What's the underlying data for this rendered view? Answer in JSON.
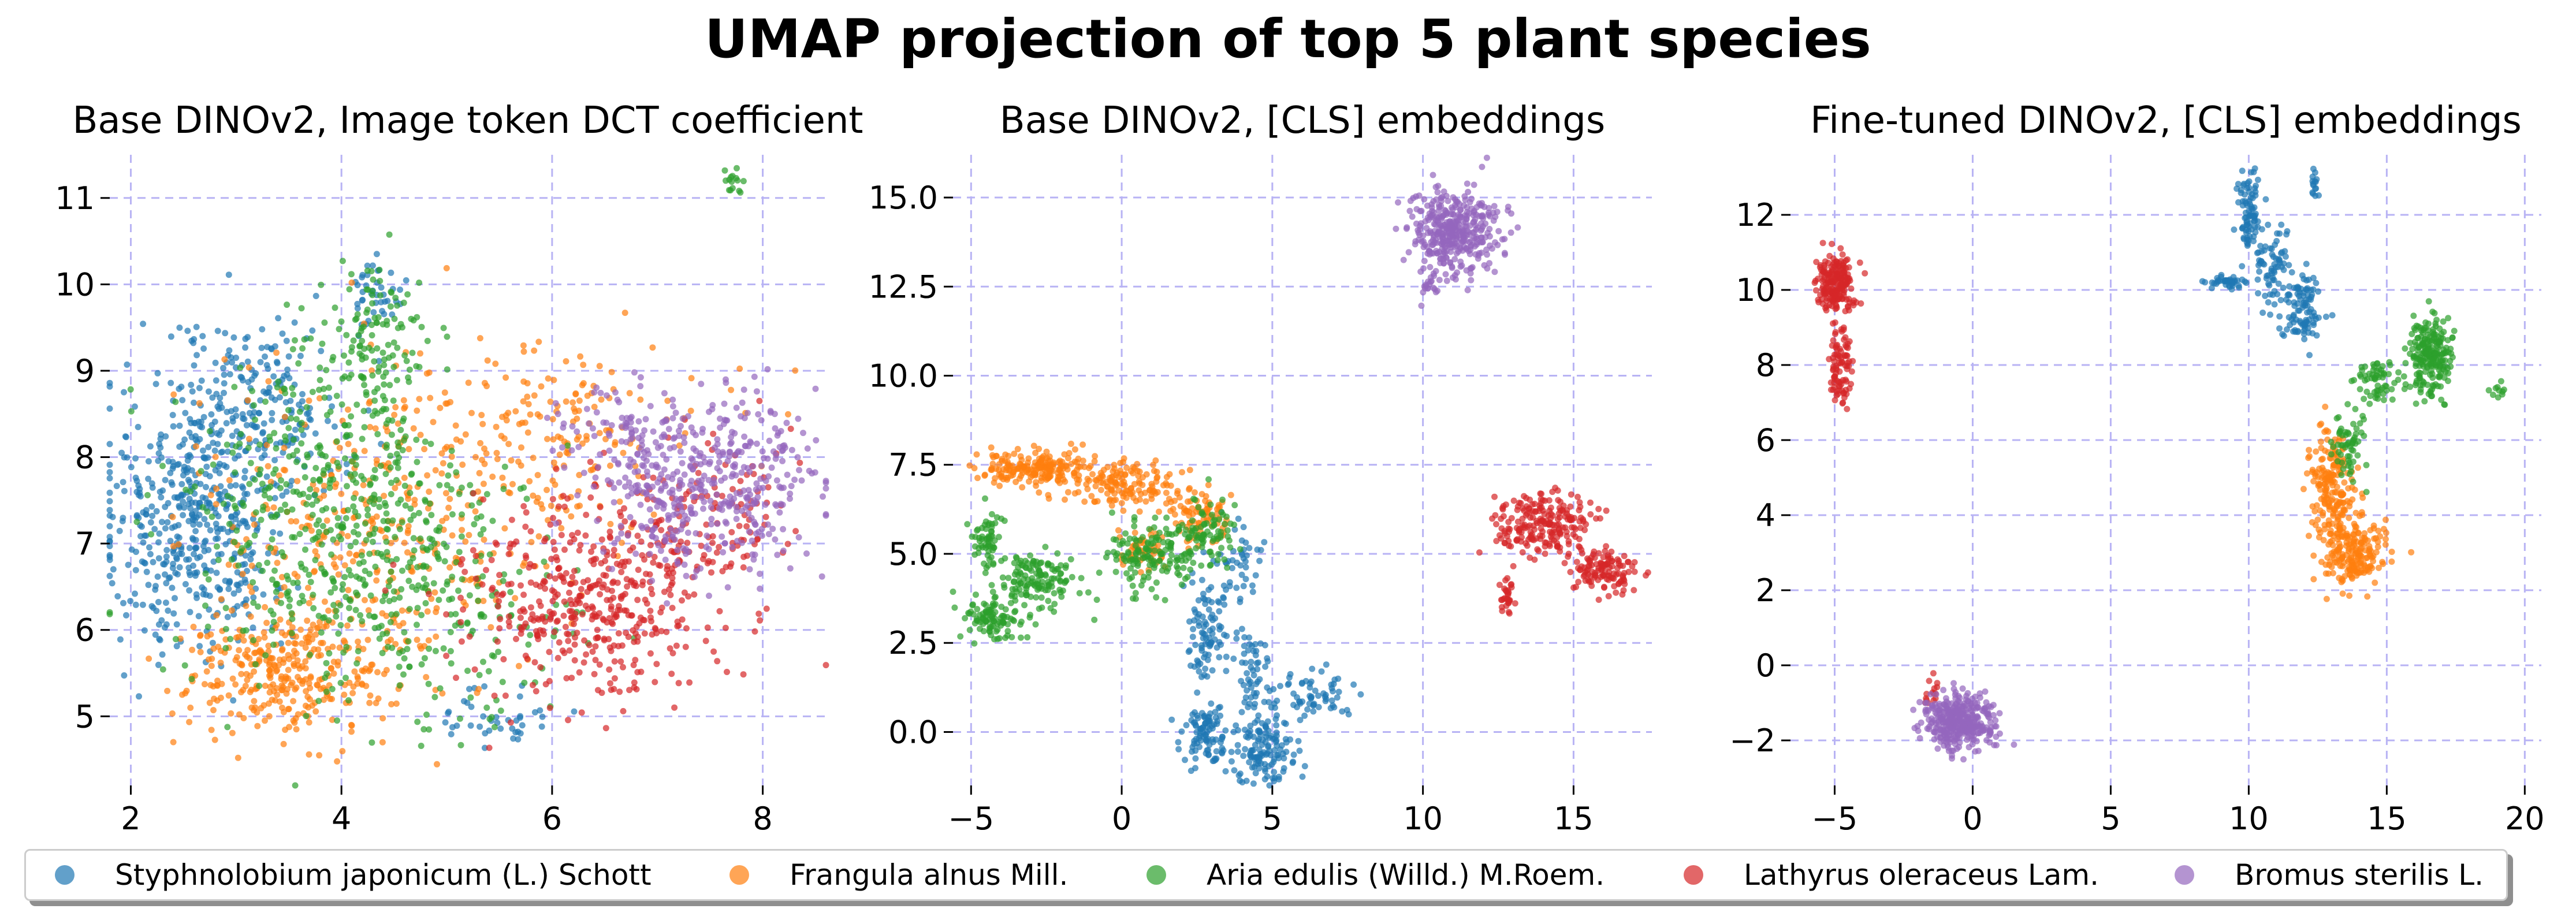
{
  "figure_title": "UMAP projection of top 5 plant species",
  "colors": [
    "#1f77b4",
    "#ff7f0e",
    "#2ca02c",
    "#d62728",
    "#9467bd"
  ],
  "legend": [
    "Styphnolobium japonicum (L.) Schott",
    "Frangula alnus Mill.",
    "Aria edulis (Willd.) M.Roem.",
    "Lathyrus oleraceus Lam.",
    "Bromus sterilis L."
  ],
  "chart_data": [
    {
      "type": "scatter",
      "title": "Base DINOv2, Image token DCT coefficient",
      "xlim": [
        1.8,
        8.6
      ],
      "ylim": [
        4.2,
        11.5
      ],
      "xticks": [
        2,
        4,
        6,
        8
      ],
      "yticks": [
        5,
        6,
        7,
        8,
        9,
        10,
        11
      ],
      "grid": true,
      "series": [
        {
          "name": "Styphnolobium japonicum (L.) Schott",
          "clusters": [
            {
              "cx": 2.6,
              "cy": 7.3,
              "sx": 0.45,
              "sy": 0.8,
              "n": 480
            },
            {
              "cx": 3.2,
              "cy": 8.6,
              "sx": 0.4,
              "sy": 0.5,
              "n": 200
            },
            {
              "cx": 4.35,
              "cy": 9.9,
              "sx": 0.12,
              "sy": 0.2,
              "n": 40
            },
            {
              "cx": 5.5,
              "cy": 5.0,
              "sx": 0.25,
              "sy": 0.2,
              "n": 40
            }
          ]
        },
        {
          "name": "Frangula alnus Mill.",
          "clusters": [
            {
              "cx": 3.5,
              "cy": 5.5,
              "sx": 0.5,
              "sy": 0.35,
              "n": 320
            },
            {
              "cx": 4.4,
              "cy": 7.2,
              "sx": 0.9,
              "sy": 0.9,
              "n": 380
            },
            {
              "cx": 6.1,
              "cy": 8.3,
              "sx": 0.7,
              "sy": 0.5,
              "n": 160
            }
          ]
        },
        {
          "name": "Aria edulis (Willd.) M.Roem.",
          "clusters": [
            {
              "cx": 3.9,
              "cy": 7.2,
              "sx": 0.7,
              "sy": 1.0,
              "n": 520
            },
            {
              "cx": 4.3,
              "cy": 9.3,
              "sx": 0.3,
              "sy": 0.45,
              "n": 120
            },
            {
              "cx": 5.2,
              "cy": 6.2,
              "sx": 0.5,
              "sy": 0.7,
              "n": 140
            },
            {
              "cx": 7.7,
              "cy": 11.2,
              "sx": 0.05,
              "sy": 0.08,
              "n": 15
            }
          ]
        },
        {
          "name": "Lathyrus oleraceus Lam.",
          "clusters": [
            {
              "cx": 6.4,
              "cy": 6.4,
              "sx": 0.6,
              "sy": 0.6,
              "n": 460
            },
            {
              "cx": 7.4,
              "cy": 7.3,
              "sx": 0.45,
              "sy": 0.45,
              "n": 120
            }
          ]
        },
        {
          "name": "Bromus sterilis L.",
          "clusters": [
            {
              "cx": 7.5,
              "cy": 7.7,
              "sx": 0.5,
              "sy": 0.5,
              "n": 420
            },
            {
              "cx": 6.7,
              "cy": 8.2,
              "sx": 0.35,
              "sy": 0.3,
              "n": 80
            }
          ]
        }
      ]
    },
    {
      "type": "scatter",
      "title": "Base DINOv2, [CLS] embeddings",
      "xlim": [
        -5.6,
        17.6
      ],
      "ylim": [
        -1.5,
        16.2
      ],
      "xticks": [
        -5,
        0,
        5,
        10,
        15
      ],
      "yticks": [
        0.0,
        2.5,
        5.0,
        7.5,
        10.0,
        12.5,
        15.0
      ],
      "grid": true,
      "series": [
        {
          "name": "Styphnolobium japonicum (L.) Schott",
          "clusters": [
            {
              "cx": 2.8,
              "cy": 3.0,
              "sx": 0.3,
              "sy": 0.8,
              "n": 90
            },
            {
              "cx": 2.8,
              "cy": 0.0,
              "sx": 0.4,
              "sy": 0.4,
              "n": 100
            },
            {
              "cx": 4.8,
              "cy": -0.5,
              "sx": 0.5,
              "sy": 0.5,
              "n": 130
            },
            {
              "cx": 4.4,
              "cy": 1.8,
              "sx": 0.4,
              "sy": 0.6,
              "n": 60
            },
            {
              "cx": 6.5,
              "cy": 1.0,
              "sx": 0.7,
              "sy": 0.3,
              "n": 60
            },
            {
              "cx": 3.8,
              "cy": 4.8,
              "sx": 0.4,
              "sy": 0.5,
              "n": 40
            }
          ]
        },
        {
          "name": "Frangula alnus Mill.",
          "clusters": [
            {
              "cx": -2.8,
              "cy": 7.4,
              "sx": 1.0,
              "sy": 0.25,
              "n": 200
            },
            {
              "cx": 0.1,
              "cy": 6.9,
              "sx": 0.9,
              "sy": 0.3,
              "n": 140
            },
            {
              "cx": 2.6,
              "cy": 6.1,
              "sx": 0.5,
              "sy": 0.4,
              "n": 80
            },
            {
              "cx": 0.6,
              "cy": 5.2,
              "sx": 0.4,
              "sy": 0.3,
              "n": 50
            }
          ]
        },
        {
          "name": "Aria edulis (Willd.) M.Roem.",
          "clusters": [
            {
              "cx": -4.2,
              "cy": 3.2,
              "sx": 0.5,
              "sy": 0.3,
              "n": 100
            },
            {
              "cx": -2.8,
              "cy": 4.2,
              "sx": 0.6,
              "sy": 0.4,
              "n": 140
            },
            {
              "cx": -4.5,
              "cy": 5.4,
              "sx": 0.25,
              "sy": 0.4,
              "n": 60
            },
            {
              "cx": 1.0,
              "cy": 4.9,
              "sx": 0.7,
              "sy": 0.5,
              "n": 140
            },
            {
              "cx": 2.8,
              "cy": 5.6,
              "sx": 0.5,
              "sy": 0.5,
              "n": 90
            }
          ]
        },
        {
          "name": "Lathyrus oleraceus Lam.",
          "clusters": [
            {
              "cx": 14.0,
              "cy": 5.8,
              "sx": 0.8,
              "sy": 0.45,
              "n": 220
            },
            {
              "cx": 16.0,
              "cy": 4.6,
              "sx": 0.5,
              "sy": 0.3,
              "n": 120
            },
            {
              "cx": 12.8,
              "cy": 3.8,
              "sx": 0.15,
              "sy": 0.25,
              "n": 30
            }
          ]
        },
        {
          "name": "Bromus sterilis L.",
          "clusters": [
            {
              "cx": 11.0,
              "cy": 14.0,
              "sx": 0.75,
              "sy": 0.6,
              "n": 380
            },
            {
              "cx": 10.2,
              "cy": 12.6,
              "sx": 0.2,
              "sy": 0.2,
              "n": 20
            }
          ]
        }
      ]
    },
    {
      "type": "scatter",
      "title": "Fine-tuned DINOv2, [CLS] embeddings",
      "xlim": [
        -6.6,
        20.6
      ],
      "ylim": [
        -3.2,
        13.6
      ],
      "xticks": [
        -5,
        0,
        5,
        10,
        15,
        20
      ],
      "yticks": [
        -2,
        0,
        2,
        4,
        6,
        8,
        10,
        12
      ],
      "grid": true,
      "series": [
        {
          "name": "Styphnolobium japonicum (L.) Schott",
          "clusters": [
            {
              "cx": 10.0,
              "cy": 12.0,
              "sx": 0.2,
              "sy": 0.5,
              "n": 80
            },
            {
              "cx": 10.8,
              "cy": 10.5,
              "sx": 0.4,
              "sy": 0.6,
              "n": 80
            },
            {
              "cx": 9.2,
              "cy": 10.2,
              "sx": 0.3,
              "sy": 0.1,
              "n": 40
            },
            {
              "cx": 12.0,
              "cy": 9.5,
              "sx": 0.35,
              "sy": 0.5,
              "n": 90
            },
            {
              "cx": 12.4,
              "cy": 12.8,
              "sx": 0.08,
              "sy": 0.25,
              "n": 15
            }
          ]
        },
        {
          "name": "Frangula alnus Mill.",
          "clusters": [
            {
              "cx": 13.0,
              "cy": 4.8,
              "sx": 0.4,
              "sy": 0.7,
              "n": 180
            },
            {
              "cx": 13.7,
              "cy": 3.0,
              "sx": 0.6,
              "sy": 0.45,
              "n": 200
            }
          ]
        },
        {
          "name": "Aria edulis (Willd.) M.Roem.",
          "clusters": [
            {
              "cx": 16.6,
              "cy": 8.2,
              "sx": 0.4,
              "sy": 0.5,
              "n": 220
            },
            {
              "cx": 14.6,
              "cy": 7.6,
              "sx": 0.4,
              "sy": 0.3,
              "n": 60
            },
            {
              "cx": 13.6,
              "cy": 6.0,
              "sx": 0.3,
              "sy": 0.5,
              "n": 60
            },
            {
              "cx": 19.0,
              "cy": 7.4,
              "sx": 0.2,
              "sy": 0.1,
              "n": 10
            }
          ]
        },
        {
          "name": "Lathyrus oleraceus Lam.",
          "clusters": [
            {
              "cx": -5.0,
              "cy": 10.2,
              "sx": 0.35,
              "sy": 0.35,
              "n": 200
            },
            {
              "cx": -4.8,
              "cy": 8.0,
              "sx": 0.2,
              "sy": 0.5,
              "n": 90
            },
            {
              "cx": -1.5,
              "cy": -0.7,
              "sx": 0.15,
              "sy": 0.2,
              "n": 15
            }
          ]
        },
        {
          "name": "Bromus sterilis L.",
          "clusters": [
            {
              "cx": -0.5,
              "cy": -1.5,
              "sx": 0.6,
              "sy": 0.35,
              "n": 380
            }
          ]
        }
      ]
    }
  ]
}
